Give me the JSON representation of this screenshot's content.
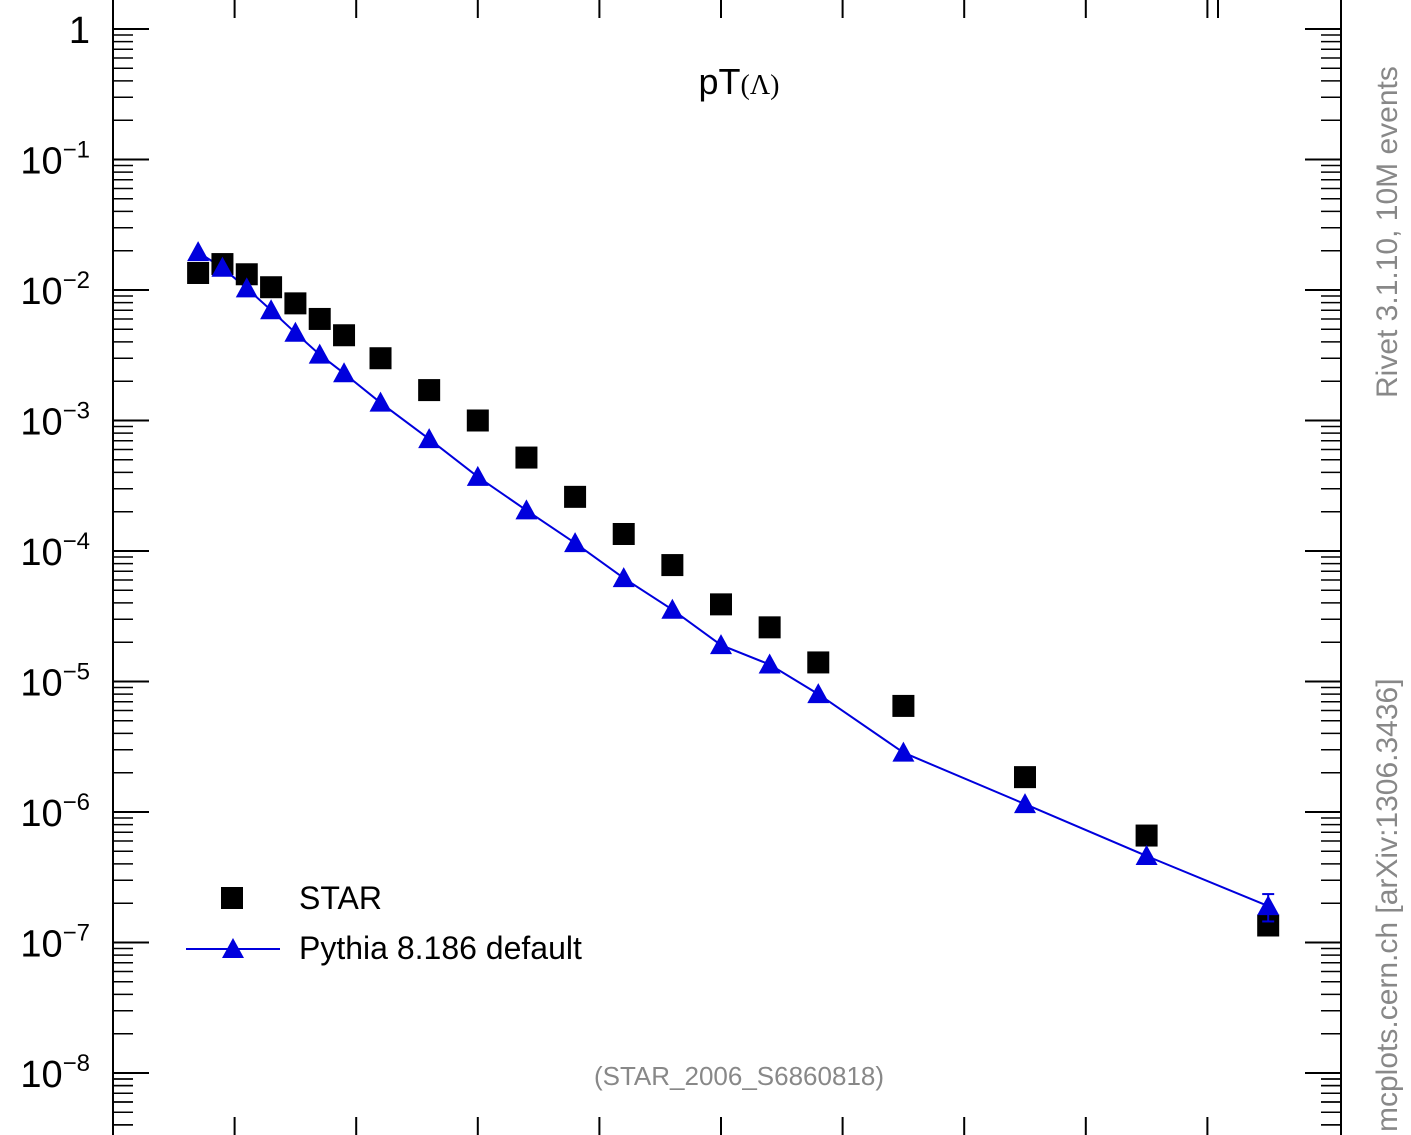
{
  "chart_data": {
    "type": "scatter",
    "title": "pT",
    "title_suffix": "(Λ)",
    "y_scale": "log",
    "ylim": [
      1e-08,
      1
    ],
    "xlim": [
      0,
      5
    ],
    "y_tick_labels": [
      {
        "base": "1",
        "exp": ""
      },
      {
        "base": "10",
        "exp": "−1"
      },
      {
        "base": "10",
        "exp": "−2"
      },
      {
        "base": "10",
        "exp": "−3"
      },
      {
        "base": "10",
        "exp": "−4"
      },
      {
        "base": "10",
        "exp": "−5"
      },
      {
        "base": "10",
        "exp": "−6"
      },
      {
        "base": "10",
        "exp": "−7"
      },
      {
        "base": "10",
        "exp": "−8"
      }
    ],
    "x_minor_ticks": [
      0.5,
      1.0,
      1.5,
      2.0,
      2.5,
      3.0,
      3.5,
      4.0,
      4.5
    ],
    "series": [
      {
        "name": "STAR",
        "marker": "square",
        "color": "#000000",
        "x": [
          0.35,
          0.45,
          0.55,
          0.65,
          0.75,
          0.85,
          0.95,
          1.1,
          1.3,
          1.5,
          1.7,
          1.9,
          2.1,
          2.3,
          2.5,
          2.7,
          2.9,
          3.25,
          3.75,
          4.25,
          4.75
        ],
        "y": [
          0.0135,
          0.0158,
          0.0132,
          0.0105,
          0.0079,
          0.006,
          0.0045,
          0.003,
          0.00171,
          0.001,
          0.00052,
          0.00026,
          0.000135,
          7.8e-05,
          3.9e-05,
          2.6e-05,
          1.4e-05,
          6.5e-06,
          1.85e-06,
          6.6e-07,
          1.35e-07
        ]
      },
      {
        "name": "Pythia 8.186 default",
        "marker": "triangle",
        "line": true,
        "color": "#0000dd",
        "x": [
          0.35,
          0.45,
          0.55,
          0.65,
          0.75,
          0.85,
          0.95,
          1.1,
          1.3,
          1.5,
          1.7,
          1.9,
          2.1,
          2.3,
          2.5,
          2.7,
          2.9,
          3.25,
          3.75,
          4.25,
          4.75
        ],
        "y": [
          0.0195,
          0.0148,
          0.0103,
          0.007,
          0.0047,
          0.0032,
          0.0023,
          0.00137,
          0.00072,
          0.00037,
          0.000205,
          0.000115,
          6.2e-05,
          3.55e-05,
          1.9e-05,
          1.35e-05,
          8e-06,
          2.85e-06,
          1.15e-06,
          4.6e-07,
          1.9e-07
        ],
        "y_err": [
          0,
          0,
          0,
          0,
          0,
          0,
          0,
          0,
          0,
          0,
          0,
          0,
          0,
          0,
          0,
          0,
          0,
          0,
          0,
          0,
          4.5e-08
        ]
      }
    ],
    "legend_position": "bottom-left"
  },
  "annotations": {
    "rivet_label": "Rivet 3.1.10,  10M events",
    "mcplots_label": "mcplots.cern.ch [arXiv:1306.3436]",
    "analysis_label": "(STAR_2006_S6860818)"
  }
}
